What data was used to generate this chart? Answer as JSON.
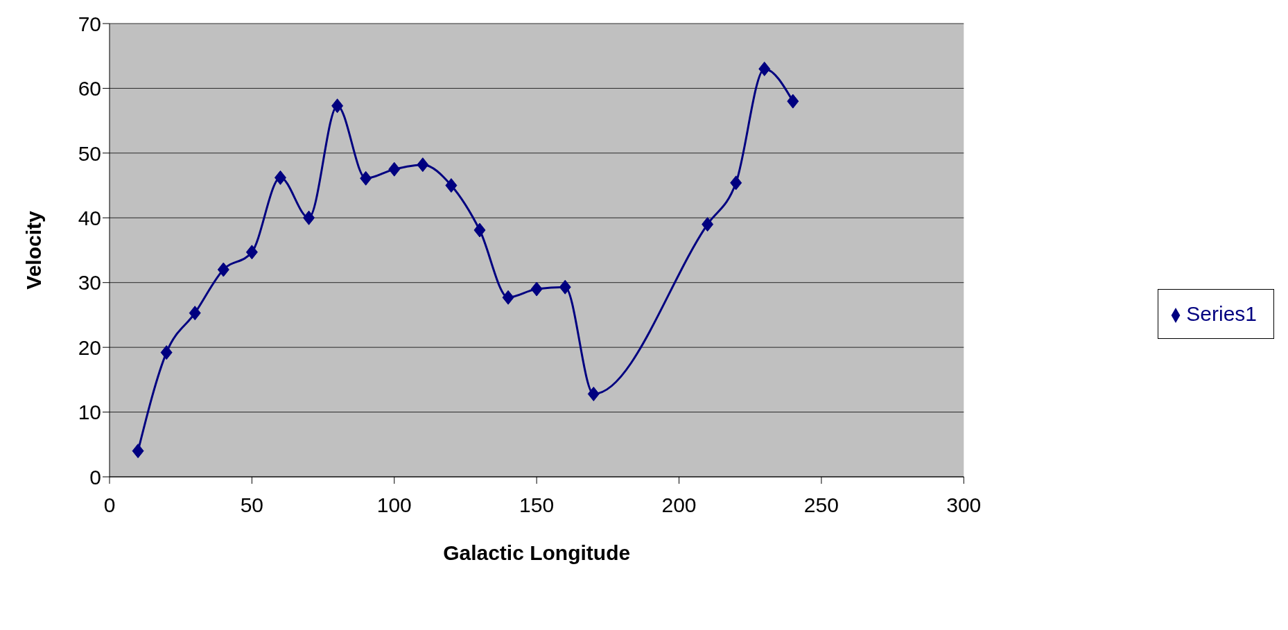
{
  "chart_data": {
    "type": "line",
    "xlabel": "Galactic Longitude",
    "ylabel": "Velocity",
    "x": [
      10,
      20,
      30,
      40,
      50,
      60,
      70,
      80,
      90,
      100,
      110,
      120,
      130,
      140,
      150,
      160,
      170,
      210,
      220,
      230,
      240
    ],
    "series": [
      {
        "name": "Series1",
        "color": "#000080",
        "values": [
          4.0,
          19.2,
          25.3,
          32.0,
          34.7,
          46.2,
          40.0,
          57.3,
          46.1,
          47.5,
          48.2,
          45.0,
          38.1,
          27.7,
          29.0,
          29.3,
          12.8,
          39.0,
          45.4,
          63.0,
          58.0
        ]
      }
    ],
    "xlim": [
      0,
      300
    ],
    "xticks": [
      0,
      50,
      100,
      150,
      200,
      250,
      300
    ],
    "ylim": [
      0,
      70
    ],
    "yticks": [
      0,
      10,
      20,
      30,
      40,
      50,
      60,
      70
    ],
    "grid": "y",
    "legend": "right",
    "marker": "diamond",
    "line_style": "solid"
  }
}
